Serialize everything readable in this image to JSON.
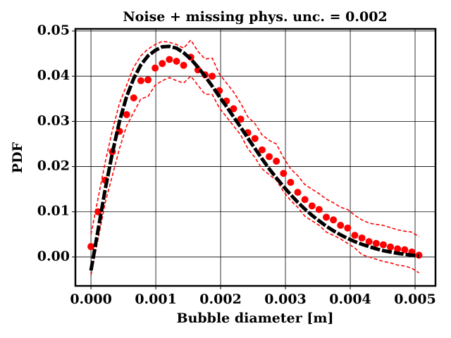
{
  "chart_data": {
    "type": "line",
    "title": "Noise + missing phys. unc. = 0.002",
    "xlabel": "Bubble diameter [m]",
    "ylabel": "PDF",
    "x": [
      0,
      0.00011,
      0.00022,
      0.00033,
      0.00044,
      0.00055,
      0.00066,
      0.00077,
      0.00088,
      0.00099,
      0.0011,
      0.00121,
      0.00132,
      0.00143,
      0.00154,
      0.00165,
      0.00176,
      0.00187,
      0.00198,
      0.00209,
      0.0022,
      0.00231,
      0.00242,
      0.00253,
      0.00264,
      0.00275,
      0.00286,
      0.00297,
      0.00308,
      0.00319,
      0.0033,
      0.00341,
      0.00352,
      0.00363,
      0.00374,
      0.00385,
      0.00396,
      0.00407,
      0.00418,
      0.00429,
      0.0044,
      0.00451,
      0.00462,
      0.00473,
      0.00484,
      0.00495,
      0.00506
    ],
    "series": [
      {
        "color": "#ff0000",
        "style": "dashed",
        "values": [
          -0.004,
          0.004,
          0.012,
          0.018,
          0.024,
          0.029,
          0.032,
          0.035,
          0.0355,
          0.038,
          0.039,
          0.0397,
          0.039,
          0.0385,
          0.04,
          0.038,
          0.036,
          0.036,
          0.033,
          0.031,
          0.029,
          0.027,
          0.024,
          0.022,
          0.0195,
          0.0182,
          0.017,
          0.0145,
          0.0125,
          0.011,
          0.009,
          0.008,
          0.007,
          0.0055,
          0.0048,
          0.004,
          0.003,
          0.002,
          0.0005,
          0,
          -0.0005,
          -0.001,
          -0.0013,
          -0.0018,
          -0.002,
          -0.0025,
          -0.0035
        ]
      },
      {
        "color": "#ff0000",
        "style": "dashed",
        "values": [
          0.005,
          0.013,
          0.021,
          0.028,
          0.034,
          0.038,
          0.042,
          0.0445,
          0.046,
          0.047,
          0.0477,
          0.0475,
          0.047,
          0.0462,
          0.048,
          0.0455,
          0.0438,
          0.044,
          0.0405,
          0.0385,
          0.0365,
          0.034,
          0.031,
          0.0295,
          0.027,
          0.0258,
          0.025,
          0.022,
          0.0195,
          0.018,
          0.016,
          0.015,
          0.014,
          0.0128,
          0.012,
          0.011,
          0.0105,
          0.0092,
          0.0082,
          0.0075,
          0.0072,
          0.007,
          0.0065,
          0.006,
          0.0057,
          0.0055,
          0.0045
        ]
      },
      {
        "color": "#ff0000",
        "style": "dots",
        "values": [
          0.0023,
          0.01,
          0.017,
          0.0233,
          0.0278,
          0.0315,
          0.0352,
          0.039,
          0.0392,
          0.0418,
          0.0428,
          0.0437,
          0.0433,
          0.0424,
          0.0442,
          0.0414,
          0.0403,
          0.04,
          0.0368,
          0.0345,
          0.0328,
          0.0305,
          0.0275,
          0.0262,
          0.0237,
          0.0222,
          0.0212,
          0.0185,
          0.0165,
          0.0143,
          0.0127,
          0.0113,
          0.0105,
          0.0088,
          0.0082,
          0.007,
          0.0064,
          0.0048,
          0.0042,
          0.0034,
          0.003,
          0.0027,
          0.0022,
          0.0018,
          0.0016,
          0.0011,
          0.0004
        ]
      },
      {
        "color": "#000000",
        "style": "thick-dashed",
        "values": [
          -0.003,
          0.006,
          0.015,
          0.023,
          0.03,
          0.0355,
          0.0395,
          0.0425,
          0.0445,
          0.0457,
          0.0465,
          0.0466,
          0.0462,
          0.0452,
          0.0438,
          0.042,
          0.04,
          0.0378,
          0.0355,
          0.0333,
          0.031,
          0.0287,
          0.0263,
          0.024,
          0.0217,
          0.0195,
          0.0175,
          0.0156,
          0.0138,
          0.0121,
          0.0106,
          0.0092,
          0.008,
          0.0068,
          0.0058,
          0.0049,
          0.0041,
          0.0034,
          0.0028,
          0.0023,
          0.0018,
          0.0014,
          0.0011,
          0.0008,
          0.0006,
          0.0004,
          0.0002
        ]
      }
    ],
    "xlim": [
      -0.00024,
      0.005315
    ],
    "ylim": [
      -0.0064,
      0.05047
    ],
    "xticks": [
      {
        "value": 0,
        "label": "0.000"
      },
      {
        "value": 0.001,
        "label": "0.001"
      },
      {
        "value": 0.002,
        "label": "0.002"
      },
      {
        "value": 0.003,
        "label": "0.003"
      },
      {
        "value": 0.004,
        "label": "0.004"
      },
      {
        "value": 0.005,
        "label": "0.005"
      }
    ],
    "yticks": [
      {
        "value": 0,
        "label": "0.00"
      },
      {
        "value": 0.01,
        "label": "0.01"
      },
      {
        "value": 0.02,
        "label": "0.02"
      },
      {
        "value": 0.03,
        "label": "0.03"
      },
      {
        "value": 0.04,
        "label": "0.04"
      },
      {
        "value": 0.05,
        "label": "0.05"
      }
    ],
    "grid": true
  }
}
